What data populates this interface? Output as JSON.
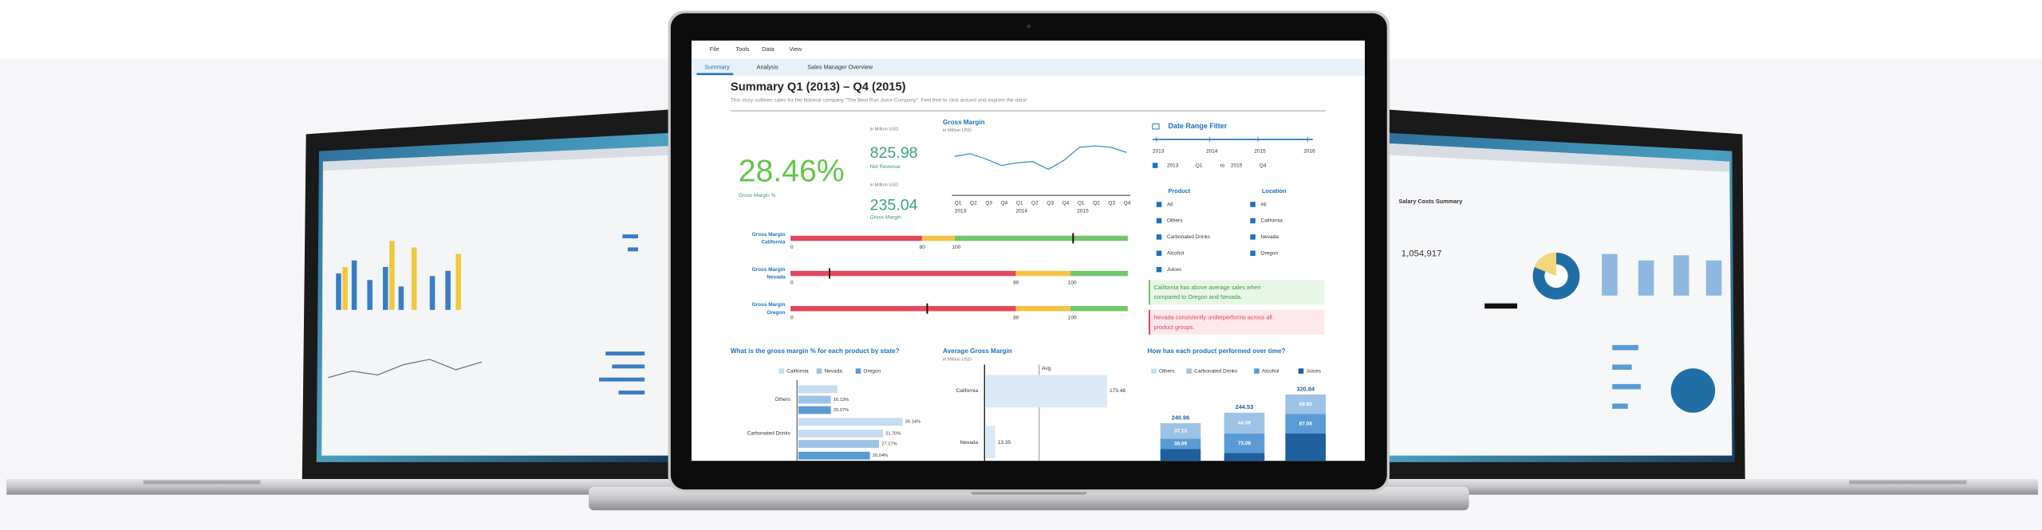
{
  "menu": [
    "File",
    "Tools",
    "Data",
    "View"
  ],
  "tabs": [
    "Summary",
    "Analysis",
    "Sales Manager Overview"
  ],
  "story": {
    "title": "Summary Q1 (2013) – Q4 (2015)",
    "subtitle": "This story outlines sales for the fictional company \"The Best Run Juice Company\". Feel free to click around and explore the data!"
  },
  "kpi": {
    "margin_pct": "28.46%",
    "margin_pct_label": "Gross Margin %",
    "unit_1": "in Million USD",
    "net_revenue": "825.98",
    "net_revenue_label": "Net Revenue",
    "unit_2": "in Million USD",
    "gross_margin": "235.04",
    "gross_margin_label": "Gross Margin"
  },
  "trend": {
    "title": "Gross Margin",
    "unit": "in Million USD",
    "quarters": [
      "Q1",
      "Q2",
      "Q3",
      "Q4",
      "Q1",
      "Q2",
      "Q3",
      "Q4",
      "Q1",
      "Q2",
      "Q3",
      "Q4"
    ],
    "years": [
      2013,
      2014,
      2015
    ]
  },
  "bullets": [
    {
      "label_1": "Gross Margin",
      "label_2": "California",
      "ticks": [
        0,
        80,
        100
      ]
    },
    {
      "label_1": "Gross Margin",
      "label_2": "Nevada",
      "ticks": [
        0,
        80,
        100
      ]
    },
    {
      "label_1": "Gross Margin",
      "label_2": "Oregon",
      "ticks": [
        0,
        80,
        100
      ]
    }
  ],
  "date_filter": {
    "title": "Date Range Filter",
    "years": [
      2013,
      2014,
      2015,
      2016
    ],
    "from_year": 2013,
    "from_quarter": "Q1",
    "to": "to",
    "to_year": 2015,
    "to_quarter": "Q4"
  },
  "product": {
    "title": "Product",
    "items": [
      "All",
      "Others",
      "Carbonated Drinks",
      "Alcohol",
      "Juices"
    ]
  },
  "location": {
    "title": "Location",
    "items": [
      "All",
      "California",
      "Nevada",
      "Oregon"
    ]
  },
  "notes": [
    {
      "lines": [
        "California has above average sales when",
        "compared to Oregon and Nevada."
      ]
    },
    {
      "lines": [
        "Nevada consistently underperforms across all",
        "product groups."
      ]
    }
  ],
  "state_margin": {
    "title": "What is the gross margin % for each product by state?",
    "legend": [
      "California",
      "Nevada",
      "Oregon"
    ],
    "categories": [
      "Others",
      "Carbonated Drinks"
    ],
    "bar_labels": [
      "16.13%",
      "20.07%",
      "36.14%",
      "21.70%",
      "27.17%",
      "20.04%"
    ]
  },
  "avg_margin": {
    "title": "Average Gross Margin",
    "unit": "in Million USD",
    "avg": "Avg",
    "rows": [
      {
        "name": "California",
        "value": 173.48
      },
      {
        "name": "Nevada",
        "value": 13.35
      }
    ]
  },
  "product_trend": {
    "title": "How has each product performed over time?",
    "legend": [
      "Others",
      "Carbonated Drinks",
      "Alcohol",
      "Juices"
    ],
    "totals": [
      240.96,
      244.53,
      320.84
    ],
    "segment_labels": [
      [
        "37.13",
        "38.09"
      ],
      [
        "44.56",
        "73.08"
      ],
      [
        "69.83",
        "87.08"
      ]
    ]
  },
  "right_laptop": {
    "title": "Salary Costs Summary",
    "kpi": "1,054,917"
  }
}
